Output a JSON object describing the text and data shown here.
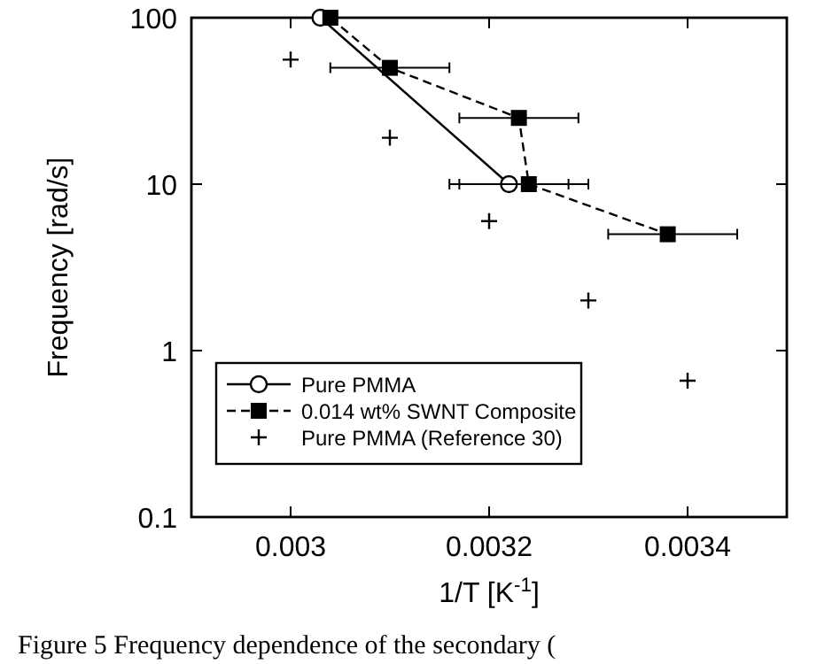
{
  "chart_data": {
    "type": "line",
    "xlabel": "1/T [K$^{-1}$]",
    "ylabel": "Frequency [rad/s]",
    "log": "y",
    "xlim": [
      0.0029,
      0.0035
    ],
    "xticks": [
      0.003,
      0.0032,
      0.0034
    ],
    "ylim": [
      0.1,
      100
    ],
    "yticks": [
      0.1,
      1,
      10,
      100
    ],
    "grid": false,
    "legend": "bottom left",
    "series": [
      {
        "name": "Pure PMMA",
        "color": "#000000",
        "marker": "circle",
        "line_style": "solid",
        "x": [
          0.00303,
          0.00322
        ],
        "values": [
          100,
          10
        ],
        "xerrors": [
          null,
          [
            0.00316,
            0.00328
          ]
        ]
      },
      {
        "name": "0.014 wt% SWNT Composite",
        "color": "#000000",
        "marker": "square",
        "line_style": "dashed",
        "x": [
          0.00304,
          0.0031,
          0.00323,
          0.00324,
          0.00338
        ],
        "values": [
          100,
          50,
          25,
          10,
          5
        ],
        "xerrors": [
          null,
          [
            0.00304,
            0.00316
          ],
          [
            0.00317,
            0.00329
          ],
          [
            0.00317,
            0.0033
          ],
          [
            0.00332,
            0.00345
          ]
        ]
      },
      {
        "name": "Pure PMMA (Reference 30)",
        "color": "#000000",
        "type": "scatter",
        "marker": "cross",
        "x": [
          0.003,
          0.0031,
          0.0032,
          0.0033,
          0.0034
        ],
        "values": [
          56,
          19,
          6,
          2,
          0.66
        ]
      }
    ],
    "annotations": [
      "Figure 5 Frequency dependence of the secondary ("
    ]
  }
}
